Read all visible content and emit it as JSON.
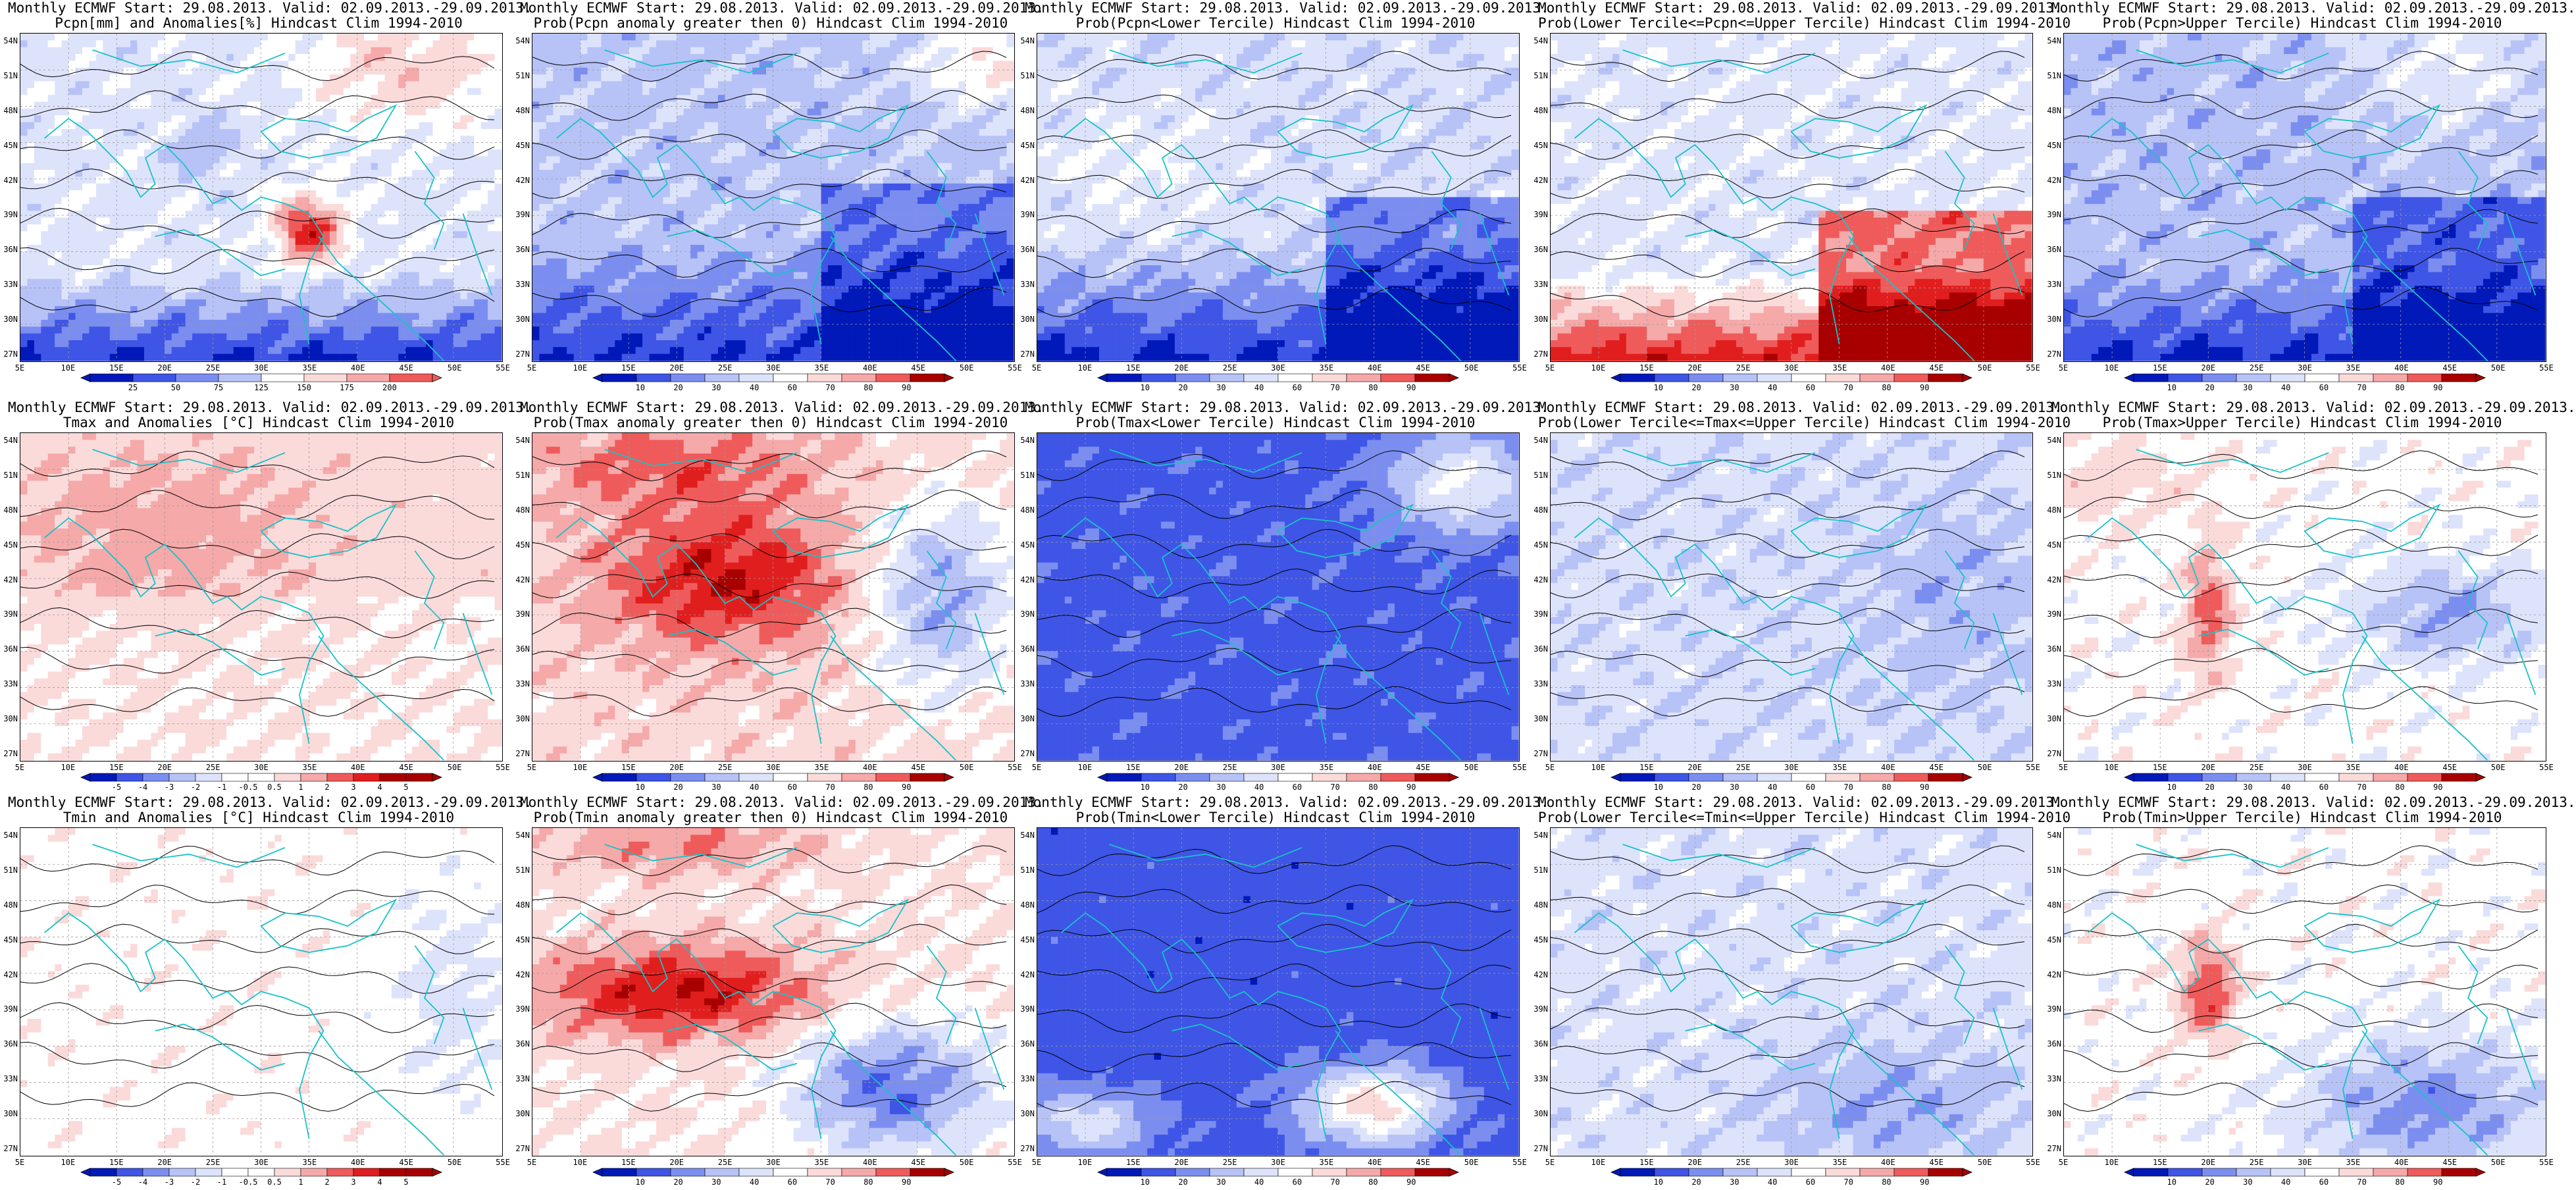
{
  "grid_lat_labels": [
    "54N",
    "51N",
    "48N",
    "45N",
    "42N",
    "39N",
    "36N",
    "33N",
    "30N",
    "27N"
  ],
  "grid_lon_labels": [
    "5E",
    "10E",
    "15E",
    "20E",
    "25E",
    "30E",
    "35E",
    "40E",
    "45E",
    "50E",
    "55E"
  ],
  "colorbar_anomaly_pcpn": [
    "25",
    "50",
    "75",
    "125",
    "150",
    "175",
    "200"
  ],
  "colorbar_anomaly_temp": [
    "-5",
    "-4",
    "-3",
    "-2",
    "-1",
    "-0.5",
    "0.5",
    "1",
    "2",
    "3",
    "4",
    "5"
  ],
  "colorbar_prob": [
    "10",
    "20",
    "30",
    "40",
    "60",
    "70",
    "80",
    "90"
  ],
  "colors": {
    "deep_blue": "#0019b8",
    "blue": "#3f55e6",
    "mid_blue": "#7b8ef0",
    "light_blue": "#b7c2f7",
    "pale_blue": "#dde3fb",
    "white": "#ffffff",
    "pale_red": "#fbdada",
    "light_red": "#f5a9a9",
    "red": "#ef5b5b",
    "mid_red": "#e11e1e",
    "dark_red": "#a80000",
    "coast": "#19c2c8",
    "contour": "#000000"
  },
  "panels": [
    {
      "id": "r0c0",
      "title1": "Monthly ECMWF Start: 29.08.2013. Valid: 02.09.2013.-29.09.2013.",
      "title2": "Pcpn[mm] and Anomalies[%] Hindcast Clim 1994-2010",
      "field": "pcpn_anom",
      "bar": "pcpn"
    },
    {
      "id": "r0c1",
      "title1": "Monthly ECMWF Start: 29.08.2013. Valid: 02.09.2013.-29.09.2013.",
      "title2": "Prob(Pcpn anomaly greater then 0) Hindcast Clim 1994-2010",
      "field": "pcpn_pos",
      "bar": "prob"
    },
    {
      "id": "r0c2",
      "title1": "Monthly ECMWF Start: 29.08.2013. Valid: 02.09.2013.-29.09.2013.",
      "title2": "Prob(Pcpn<Lower Tercile) Hindcast Clim 1994-2010",
      "field": "pcpn_lower",
      "bar": "prob"
    },
    {
      "id": "r0c3",
      "title1": "Monthly ECMWF Start: 29.08.2013. Valid: 02.09.2013.-29.09.2013.",
      "title2": "Prob(Lower Tercile<=Pcpn<=Upper Tercile) Hindcast Clim 1994-2010",
      "field": "pcpn_mid",
      "bar": "prob"
    },
    {
      "id": "r0c4",
      "title1": "Monthly ECMWF Start: 29.08.2013. Valid: 02.09.2013.-29.09.2013.",
      "title2": "Prob(Pcpn>Upper Tercile) Hindcast Clim 1994-2010",
      "field": "pcpn_upper",
      "bar": "prob"
    },
    {
      "id": "r1c0",
      "title1": "Monthly ECMWF Start: 29.08.2013. Valid: 02.09.2013.-29.09.2013.",
      "title2": "Tmax and Anomalies [°C] Hindcast Clim 1994-2010",
      "field": "tmax_anom",
      "bar": "temp"
    },
    {
      "id": "r1c1",
      "title1": "Monthly ECMWF Start: 29.08.2013. Valid: 02.09.2013.-29.09.2013.",
      "title2": "Prob(Tmax anomaly greater then 0) Hindcast Clim 1994-2010",
      "field": "tmax_pos",
      "bar": "prob"
    },
    {
      "id": "r1c2",
      "title1": "Monthly ECMWF Start: 29.08.2013. Valid: 02.09.2013.-29.09.2013.",
      "title2": "Prob(Tmax<Lower Tercile) Hindcast Clim 1994-2010",
      "field": "tmax_lower",
      "bar": "prob"
    },
    {
      "id": "r1c3",
      "title1": "Monthly ECMWF Start: 29.08.2013. Valid: 02.09.2013.-29.09.2013.",
      "title2": "Prob(Lower Tercile<=Tmax<=Upper Tercile) Hindcast Clim 1994-2010",
      "field": "tmax_mid",
      "bar": "prob"
    },
    {
      "id": "r1c4",
      "title1": "Monthly ECMWF Start: 29.08.2013. Valid: 02.09.2013.-29.09.2013.",
      "title2": "Prob(Tmax>Upper Tercile) Hindcast Clim 1994-2010",
      "field": "tmax_upper",
      "bar": "prob"
    },
    {
      "id": "r2c0",
      "title1": "Monthly ECMWF Start: 29.08.2013. Valid: 02.09.2013.-29.09.2013.",
      "title2": "Tmin and Anomalies [°C] Hindcast Clim 1994-2010",
      "field": "tmin_anom",
      "bar": "temp"
    },
    {
      "id": "r2c1",
      "title1": "Monthly ECMWF Start: 29.08.2013. Valid: 02.09.2013.-29.09.2013.",
      "title2": "Prob(Tmin anomaly greater then 0) Hindcast Clim 1994-2010",
      "field": "tmin_pos",
      "bar": "prob"
    },
    {
      "id": "r2c2",
      "title1": "Monthly ECMWF Start: 29.08.2013. Valid: 02.09.2013.-29.09.2013.",
      "title2": "Prob(Tmin<Lower Tercile) Hindcast Clim 1994-2010",
      "field": "tmin_lower",
      "bar": "prob"
    },
    {
      "id": "r2c3",
      "title1": "Monthly ECMWF Start: 29.08.2013. Valid: 02.09.2013.-29.09.2013.",
      "title2": "Prob(Lower Tercile<=Tmin<=Upper Tercile) Hindcast Clim 1994-2010",
      "field": "tmin_mid",
      "bar": "prob"
    },
    {
      "id": "r2c4",
      "title1": "Monthly ECMWF Start: 29.08.2013. Valid: 02.09.2013.-29.09.2013.",
      "title2": "Prob(Tmin>Upper Tercile) Hindcast Clim 1994-2010",
      "field": "tmin_upper",
      "bar": "prob"
    }
  ]
}
